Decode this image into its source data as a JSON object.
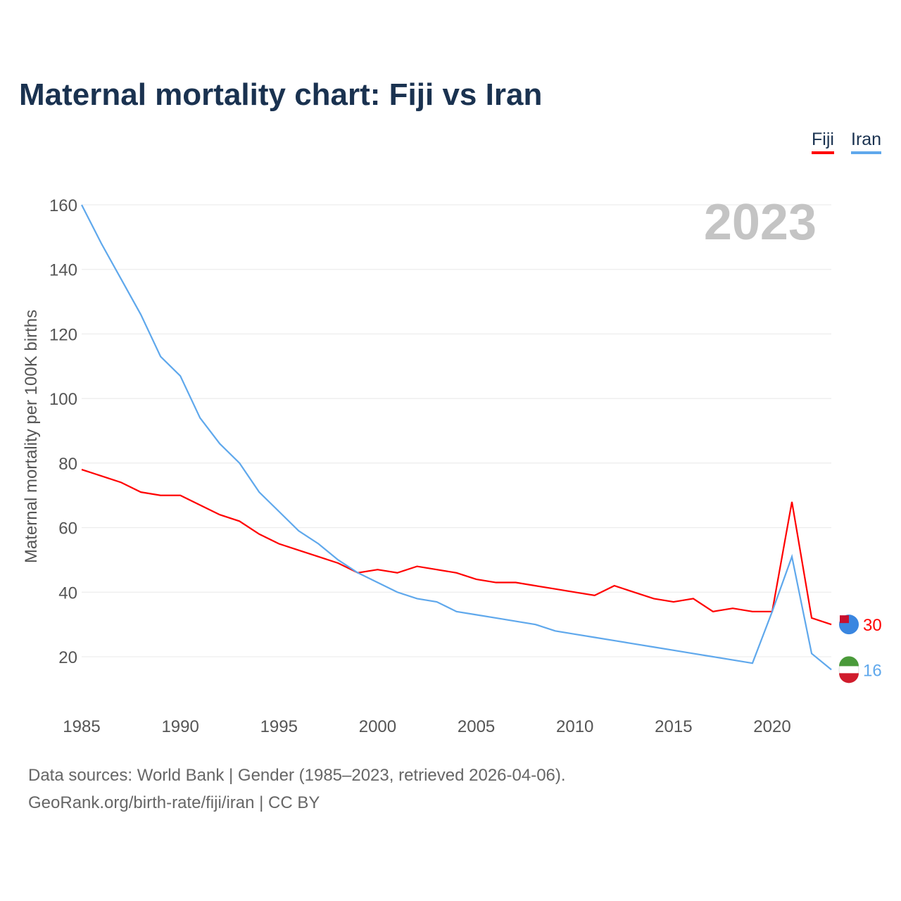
{
  "chart_data": {
    "type": "line",
    "title": "Maternal mortality chart: Fiji vs Iran",
    "ylabel": "Maternal mortality per 100K births",
    "xlabel": "",
    "year_label": "2023",
    "ylim": [
      0,
      160
    ],
    "xlim": [
      1985,
      2023
    ],
    "yticks": [
      20,
      40,
      60,
      80,
      100,
      120,
      140,
      160
    ],
    "xticks": [
      1985,
      1990,
      1995,
      2000,
      2005,
      2010,
      2015,
      2020
    ],
    "grid": true,
    "legend": "top-right",
    "x": [
      1985,
      1986,
      1987,
      1988,
      1989,
      1990,
      1991,
      1992,
      1993,
      1994,
      1995,
      1996,
      1997,
      1998,
      1999,
      2000,
      2001,
      2002,
      2003,
      2004,
      2005,
      2006,
      2007,
      2008,
      2009,
      2010,
      2011,
      2012,
      2013,
      2014,
      2015,
      2016,
      2017,
      2018,
      2019,
      2020,
      2021,
      2022,
      2023
    ],
    "series": [
      {
        "name": "Fiji",
        "color": "#ff0000",
        "end_label": "30",
        "values": [
          78,
          76,
          74,
          71,
          70,
          70,
          67,
          64,
          62,
          58,
          55,
          53,
          51,
          49,
          46,
          47,
          46,
          48,
          47,
          46,
          44,
          43,
          43,
          42,
          41,
          40,
          39,
          42,
          40,
          38,
          37,
          38,
          34,
          35,
          34,
          34,
          68,
          32,
          30
        ]
      },
      {
        "name": "Iran",
        "color": "#5fa8ec",
        "end_label": "16",
        "values": [
          160,
          148,
          137,
          126,
          113,
          107,
          94,
          86,
          80,
          71,
          65,
          59,
          55,
          50,
          46,
          43,
          40,
          38,
          37,
          34,
          33,
          32,
          31,
          30,
          28,
          27,
          26,
          25,
          24,
          23,
          22,
          21,
          20,
          19,
          18,
          34,
          51,
          21,
          16
        ]
      }
    ]
  },
  "source_line1": "Data sources: World Bank | Gender (1985–2023, retrieved 2026-04-06).",
  "source_line2": "GeoRank.org/birth-rate/fiji/iran | CC BY"
}
